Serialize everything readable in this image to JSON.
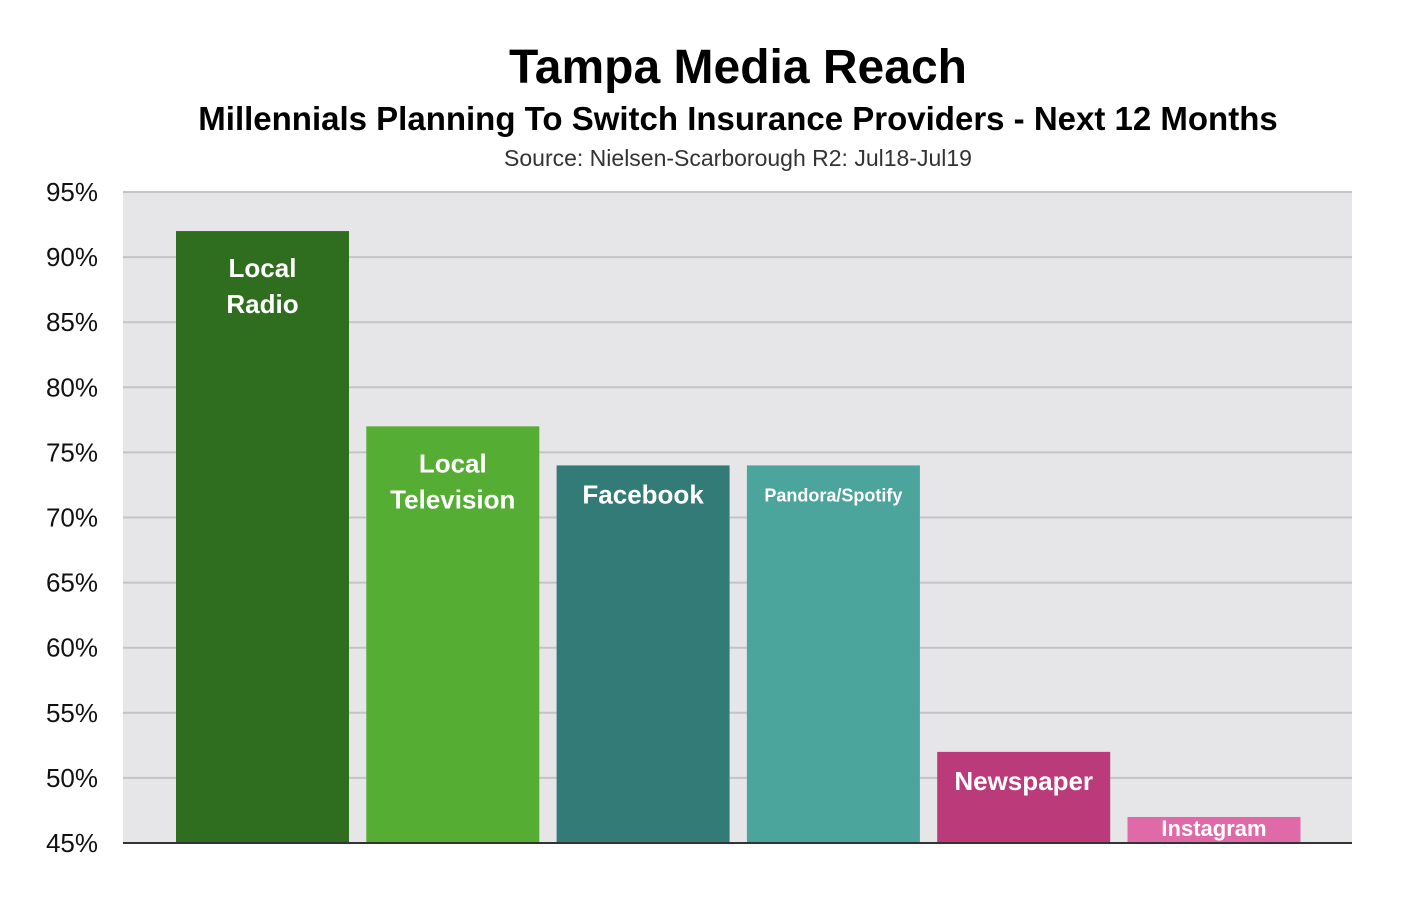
{
  "chart_data": {
    "type": "bar",
    "title": "Tampa Media Reach",
    "subtitle": "Millennials Planning To Switch Insurance Providers - Next 12 Months",
    "source": "Source: Nielsen-Scarborough R2: Jul18-Jul19",
    "xlabel": "",
    "ylabel": "",
    "ylim": [
      45,
      95
    ],
    "y_ticks": [
      "95%",
      "90%",
      "85%",
      "80%",
      "75%",
      "70%",
      "65%",
      "60%",
      "55%",
      "50%",
      "45%"
    ],
    "grid": true,
    "legend": "none",
    "categories": [
      "Local Radio",
      "Local Television",
      "Facebook",
      "Pandora/Spotify",
      "Newspaper",
      "Instagram"
    ],
    "bar_labels": [
      [
        "Local",
        "Radio"
      ],
      [
        "Local",
        "Television"
      ],
      [
        "Facebook"
      ],
      [
        "Pandora/Spotify"
      ],
      [
        "Newspaper"
      ],
      [
        "Instagram"
      ]
    ],
    "values": [
      92,
      77,
      74,
      74,
      52,
      47
    ],
    "colors": [
      "#306e1f",
      "#55ad34",
      "#337b76",
      "#4ba59c",
      "#bb3a7a",
      "#e06aa8"
    ],
    "plot_background": "#e6e6e9",
    "gridline_color": "#c4c4c6"
  }
}
